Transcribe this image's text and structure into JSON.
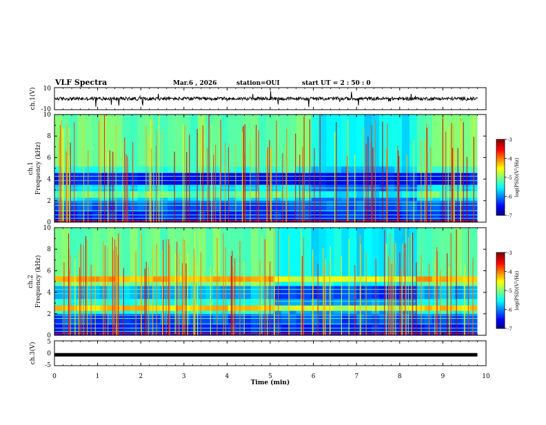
{
  "header": {
    "title": "VLF Spectra",
    "date": "Mar.6 , 2026",
    "station": "station=OUI",
    "start": "start UT = 2 : 50 : 0"
  },
  "chart_data": [
    {
      "type": "line",
      "name": "ch1-waveform",
      "ylabel": "ch.1(V)",
      "ylim": [
        -10,
        10
      ],
      "yticks": [
        "10",
        "-10"
      ],
      "baseline": 0
    },
    {
      "type": "heatmap",
      "name": "ch1-spectrogram",
      "ylabel": "ch.1",
      "ylabel2": "Frequency (kHz)",
      "ylim": [
        0,
        10
      ],
      "yticks": [
        "0",
        "2",
        "4",
        "6",
        "8",
        "10"
      ],
      "bands": [
        {
          "f0": 0.0,
          "f1": 1.0,
          "level": -6.4
        },
        {
          "f0": 1.0,
          "f1": 2.0,
          "level": -6.2
        },
        {
          "f0": 2.0,
          "f1": 2.3,
          "level": -5.6
        },
        {
          "f0": 2.3,
          "f1": 2.9,
          "level": -5.1
        },
        {
          "f0": 2.9,
          "f1": 3.5,
          "level": -5.6
        },
        {
          "f0": 3.5,
          "f1": 4.6,
          "level": -6.5
        },
        {
          "f0": 4.6,
          "f1": 5.2,
          "level": -5.3
        },
        {
          "f0": 5.2,
          "f1": 10.0,
          "level": -5.1
        }
      ],
      "quiet_interval_min": [
        6.0,
        8.4
      ],
      "colorbar": {
        "label": "log(PSD)(V²/Hz)",
        "ticks": [
          "-3",
          "-4",
          "-5",
          "-6",
          "-7"
        ],
        "range": [
          -7,
          -3
        ]
      }
    },
    {
      "type": "heatmap",
      "name": "ch2-spectrogram",
      "ylabel": "ch.2",
      "ylabel2": "Frequency (kHz)",
      "ylim": [
        0,
        10
      ],
      "yticks": [
        "0",
        "2",
        "4",
        "6",
        "8",
        "10"
      ],
      "bands": [
        {
          "f0": 0.0,
          "f1": 1.0,
          "level": -6.4
        },
        {
          "f0": 1.0,
          "f1": 2.0,
          "level": -6.2
        },
        {
          "f0": 2.0,
          "f1": 2.3,
          "level": -5.4
        },
        {
          "f0": 2.3,
          "f1": 2.8,
          "level": -4.3
        },
        {
          "f0": 2.8,
          "f1": 3.4,
          "level": -5.4
        },
        {
          "f0": 3.4,
          "f1": 4.6,
          "level": -5.8
        },
        {
          "f0": 4.6,
          "f1": 5.0,
          "level": -5.0
        },
        {
          "f0": 5.0,
          "f1": 5.5,
          "level": -4.2
        },
        {
          "f0": 5.5,
          "f1": 10.0,
          "level": -5.1
        }
      ],
      "quiet_interval_min": [
        5.0,
        8.4
      ],
      "colorbar": {
        "label": "log(PSD)(V²/Hz)",
        "ticks": [
          "-3",
          "-4",
          "-5",
          "-6",
          "-7"
        ],
        "range": [
          -7,
          -3
        ]
      }
    },
    {
      "type": "line",
      "name": "ch3-waveform",
      "ylabel": "ch.3(V)",
      "ylim": [
        -5,
        5
      ],
      "yticks": [
        "5",
        "0",
        "-5"
      ],
      "value": -0.6
    }
  ],
  "xaxis": {
    "label": "Time (min)",
    "ticks": [
      "0",
      "1",
      "2",
      "3",
      "4",
      "5",
      "6",
      "7",
      "8",
      "9",
      "10"
    ],
    "xlim": [
      0,
      10
    ],
    "data_end": 9.8
  },
  "colors": {
    "low": "#00007f",
    "blue": "#0000ff",
    "cyan": "#00ffff",
    "green": "#00ff00",
    "yellow": "#ffff00",
    "red": "#ff0000",
    "high": "#7f0000"
  }
}
